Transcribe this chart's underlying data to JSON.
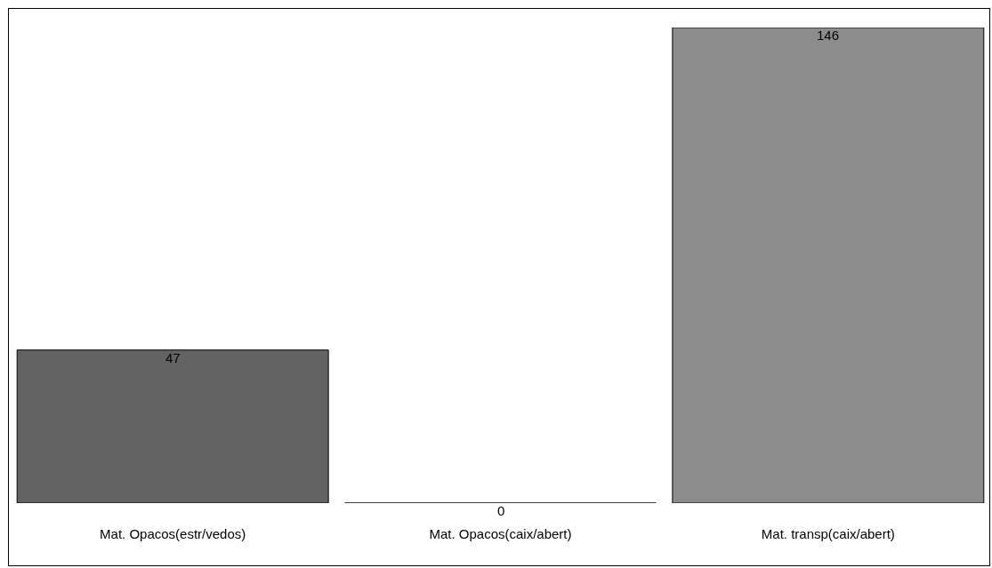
{
  "chart_data": {
    "type": "bar",
    "categories": [
      "Mat. Opacos(estr/vedos)",
      "Mat. Opacos(caix/abert)",
      "Mat. transp(caix/abert)"
    ],
    "values": [
      47,
      0,
      146
    ],
    "colors": [
      "#636363",
      "#000000",
      "#8c8c8c"
    ],
    "data_labels": true,
    "grid": false,
    "legend": false
  }
}
